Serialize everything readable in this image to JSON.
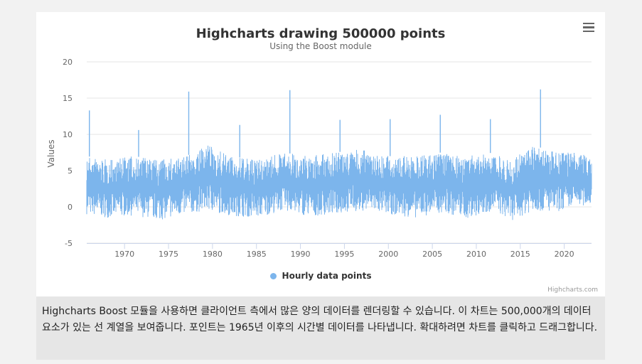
{
  "chart_data": {
    "type": "line",
    "title": "Highcharts drawing 500000 points",
    "subtitle": "Using the Boost module",
    "xlabel": "",
    "ylabel": "Values",
    "xlim": [
      1965.7,
      2023.1
    ],
    "ylim": [
      -5,
      20
    ],
    "x_ticks": [
      1970,
      1975,
      1980,
      1985,
      1990,
      1995,
      2000,
      2005,
      2010,
      2015,
      2020
    ],
    "y_ticks": [
      -5,
      0,
      5,
      10,
      15,
      20
    ],
    "grid": "horizontal",
    "legend_position": "bottom-center",
    "series": [
      {
        "name": "Hourly data points",
        "color": "#7cb5ec",
        "band_x": [
          1965.7,
          1968,
          1971,
          1974,
          1977,
          1979.5,
          1982,
          1985,
          1988,
          1991,
          1994,
          1997,
          2000,
          2003,
          2006,
          2009,
          2012,
          2014,
          2016.5,
          2019,
          2021,
          2023.1
        ],
        "band_min": [
          -1,
          -1.5,
          -1.2,
          -1.8,
          -1,
          -0.5,
          -1.2,
          -1.5,
          -0.5,
          -1.3,
          -1,
          -0.5,
          -1,
          -1.5,
          -0.8,
          -1.6,
          -0.5,
          -1.9,
          -0.5,
          -0.8,
          0,
          0.3
        ],
        "band_max": [
          7,
          6.5,
          7,
          6.5,
          7,
          8.5,
          7,
          6.5,
          7.5,
          7,
          7.5,
          8,
          7,
          7,
          7.5,
          7,
          7.5,
          6.5,
          8.5,
          7.5,
          7.5,
          7
        ],
        "peaks": [
          {
            "x": 1966.0,
            "y": 13.3
          },
          {
            "x": 1971.6,
            "y": 10.6
          },
          {
            "x": 1977.3,
            "y": 15.9
          },
          {
            "x": 1983.1,
            "y": 11.3
          },
          {
            "x": 1988.8,
            "y": 16.1
          },
          {
            "x": 1994.5,
            "y": 12.0
          },
          {
            "x": 2000.2,
            "y": 12.1
          },
          {
            "x": 2005.9,
            "y": 12.7
          },
          {
            "x": 2011.6,
            "y": 12.1
          },
          {
            "x": 2017.3,
            "y": 16.2
          }
        ]
      }
    ]
  },
  "credits": "Highcharts.com",
  "description": "Highcharts Boost 모듈을 사용하면 클라이언트 측에서 많은 양의 데이터를 렌더링할 수 있습니다. 이 차트는 500,000개의 데이터 요소가 있는 선 계열을 보여줍니다. 포인트는 1965년 이후의 시간별 데이터를 나타냅니다. 확대하려면 차트를 클릭하고 드래그합니다.",
  "icons": {
    "menu": "hamburger-menu-icon"
  }
}
